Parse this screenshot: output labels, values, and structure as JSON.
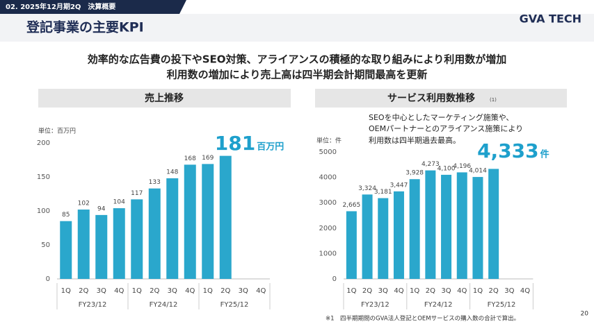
{
  "header": {
    "section": "02. 2025年12月期2Q　決算概要",
    "title": "登記事業の主要KPI",
    "logo": "GVA TECH"
  },
  "headline": [
    "効率的な広告費の投下やSEO対策、アライアンスの積極的な取り組みにより利用数が増加",
    "利用数の増加により売上高は四半期会計期間最高を更新"
  ],
  "chart_data": [
    {
      "type": "bar",
      "title": "売上推移",
      "unit_label": "単位：百万円",
      "highlight_unit": "百万円",
      "categories": [
        "1Q",
        "2Q",
        "3Q",
        "4Q",
        "1Q",
        "2Q",
        "3Q",
        "4Q",
        "1Q",
        "2Q",
        "3Q",
        "4Q"
      ],
      "groups": [
        "FY23/12",
        "FY24/12",
        "FY25/12"
      ],
      "values": [
        85,
        102,
        94,
        104,
        117,
        133,
        148,
        168,
        169,
        181,
        null,
        null
      ],
      "color": "#2aa7cc",
      "ylim": [
        0,
        200
      ],
      "yticks": [
        0,
        50,
        100,
        150,
        200
      ],
      "grid": false
    },
    {
      "type": "bar",
      "title": "サービス利用数推移",
      "title_note": "(1)",
      "unit_label": "単位：件",
      "highlight_unit": "件",
      "annotation": [
        "SEOを中心としたマーケティング施策や、",
        "OEMパートナーとのアライアンス施策により",
        "利用数は四半期過去最高。"
      ],
      "categories": [
        "1Q",
        "2Q",
        "3Q",
        "4Q",
        "1Q",
        "2Q",
        "3Q",
        "4Q",
        "1Q",
        "2Q",
        "3Q",
        "4Q"
      ],
      "groups": [
        "FY23/12",
        "FY24/12",
        "FY25/12"
      ],
      "values": [
        2665,
        3324,
        3181,
        3447,
        3928,
        4273,
        4100,
        4196,
        4014,
        4333,
        null,
        null
      ],
      "value_labels": [
        "2,665",
        "3,324",
        "3,181",
        "3,447",
        "3,928",
        "4,273",
        "4,100",
        "4,196",
        "4,014",
        "4,333",
        null,
        null
      ],
      "color": "#2aa7cc",
      "ylim": [
        0,
        5000
      ],
      "yticks": [
        0,
        1000,
        2000,
        3000,
        4000,
        5000
      ],
      "grid": false
    }
  ],
  "footnote": "※1　四半期期間のGVA法人登記とOEMサービスの購入数の合計で算出。",
  "page_number": "20"
}
